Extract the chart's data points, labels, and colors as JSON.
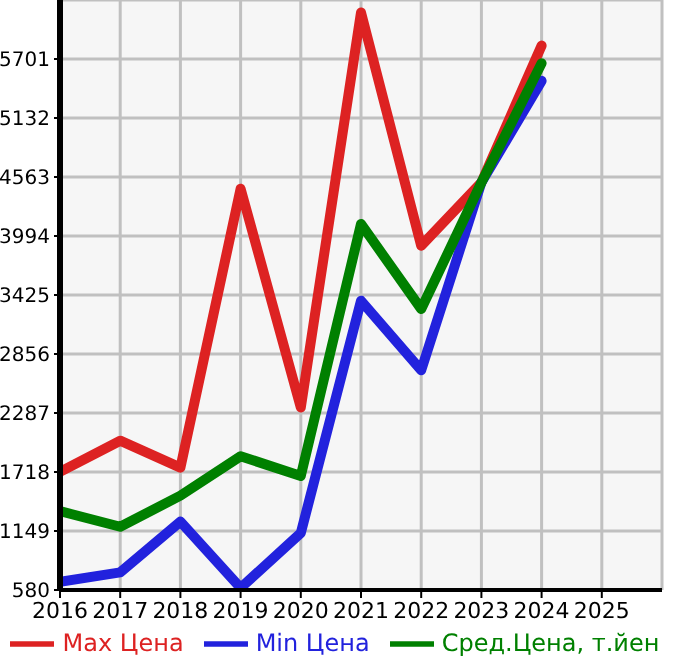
{
  "chart_data": {
    "type": "line",
    "x": [
      2016,
      2017,
      2018,
      2019,
      2020,
      2021,
      2022,
      2023,
      2024
    ],
    "series": [
      {
        "name": "Max Цена",
        "color": "#dd2222",
        "values": [
          1720,
          2020,
          1760,
          4450,
          2340,
          6150,
          3900,
          4510,
          5830
        ]
      },
      {
        "name": "Min Цена",
        "color": "#2222dd",
        "values": [
          660,
          750,
          1240,
          600,
          1130,
          3370,
          2700,
          4510,
          5490
        ]
      },
      {
        "name": "Сред.Цена, т.йен",
        "color": "#008000",
        "values": [
          1340,
          1190,
          1490,
          1870,
          1680,
          4110,
          3290,
          4510,
          5660
        ]
      }
    ],
    "xlim": [
      2016,
      2026
    ],
    "xticks": [
      2016,
      2017,
      2018,
      2019,
      2020,
      2021,
      2022,
      2023,
      2024,
      2025
    ],
    "ylim": [
      580,
      6270
    ],
    "yticks": [
      580,
      1149,
      1718,
      2287,
      2856,
      3425,
      3994,
      4563,
      5132,
      5701
    ],
    "grid": true,
    "legend": "bottom",
    "marker": "none",
    "line_style": "solid"
  }
}
